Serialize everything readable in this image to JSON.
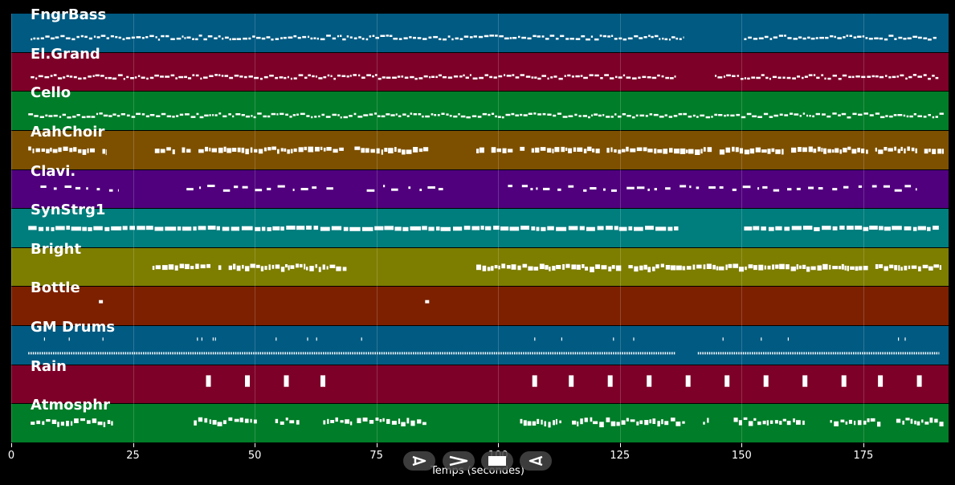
{
  "chart_data": {
    "type": "piano-roll",
    "xlabel": "Temps (secondes)",
    "xlim": [
      0,
      192.5
    ],
    "xticks": [
      0,
      25,
      50,
      75,
      100,
      125,
      150,
      175
    ],
    "grid": true,
    "tracks": [
      {
        "name": "FngrBass",
        "color": "#005a82",
        "style": "dense",
        "segments": [
          [
            4,
            138
          ],
          [
            150.5,
            190
          ]
        ]
      },
      {
        "name": "El.Grand",
        "color": "#7d0028",
        "style": "dense",
        "segments": [
          [
            4,
            136.5
          ],
          [
            144.5,
            190.5
          ]
        ]
      },
      {
        "name": "Cello",
        "color": "#007d28",
        "style": "dense",
        "segments": [
          [
            3.5,
            191.5
          ]
        ]
      },
      {
        "name": "AahChoir",
        "color": "#7d5000",
        "style": "blocks",
        "segments": [
          [
            3.5,
            19.5
          ],
          [
            29.5,
            68.5
          ],
          [
            70.5,
            86.5
          ],
          [
            95.5,
            191.5
          ]
        ]
      },
      {
        "name": "Clavi.",
        "color": "#50007d",
        "style": "sparse",
        "segments": [
          [
            6,
            22
          ],
          [
            36,
            68
          ],
          [
            73,
            89
          ],
          [
            102,
            186
          ]
        ]
      },
      {
        "name": "SynStrg1",
        "color": "#007d7d",
        "style": "thick",
        "segments": [
          [
            3.5,
            137
          ],
          [
            150.5,
            190.5
          ]
        ]
      },
      {
        "name": "Bright",
        "color": "#7d7d00",
        "style": "blocks",
        "segments": [
          [
            29,
            69.5
          ],
          [
            95.5,
            191
          ]
        ]
      },
      {
        "name": "Bottle",
        "color": "#7d2000",
        "style": "dots",
        "segments": [
          [
            18,
            19
          ],
          [
            85,
            86
          ]
        ]
      },
      {
        "name": "GM Drums",
        "color": "#005a82",
        "style": "drums",
        "segments": [
          [
            3.5,
            136.5
          ],
          [
            141,
            190.5
          ]
        ]
      },
      {
        "name": "Rain",
        "color": "#7d0028",
        "style": "rain",
        "points": [
          40.5,
          48.5,
          56.5,
          64,
          107.5,
          115,
          123,
          131,
          139,
          147,
          155,
          163,
          171,
          178.5,
          186.5
        ]
      },
      {
        "name": "Atmosphr",
        "color": "#007d28",
        "style": "atmos",
        "segments": [
          [
            4,
            21
          ],
          [
            37.5,
            70
          ],
          [
            71,
            87.5
          ],
          [
            104.5,
            191.5
          ]
        ]
      }
    ]
  },
  "controls": [
    {
      "name": "play",
      "icon": "play-icon"
    },
    {
      "name": "fast-forward",
      "icon": "forward-icon"
    },
    {
      "name": "stop",
      "icon": "stop-icon"
    },
    {
      "name": "rewind",
      "icon": "rewind-icon"
    }
  ]
}
